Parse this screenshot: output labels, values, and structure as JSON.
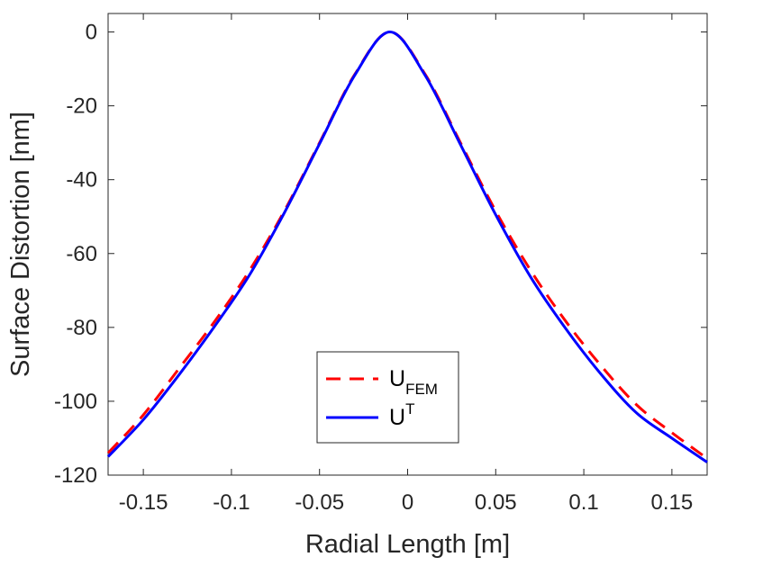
{
  "chart_data": {
    "type": "line",
    "xlabel": "Radial Length [m]",
    "ylabel": "Surface Distortion [nm]",
    "xlim": [
      -0.17,
      0.17
    ],
    "ylim": [
      -120,
      5
    ],
    "xticks": [
      -0.15,
      -0.1,
      -0.05,
      0,
      0.05,
      0.1,
      0.15
    ],
    "xtick_labels": [
      "-0.15",
      "-0.1",
      "-0.05",
      "0",
      "0.05",
      "0.1",
      "0.15"
    ],
    "yticks": [
      0,
      -20,
      -40,
      -60,
      -80,
      -100,
      -120
    ],
    "ytick_labels": [
      "0",
      "-20",
      "-40",
      "-60",
      "-80",
      "-100",
      "-120"
    ],
    "grid": false,
    "legend_position": "bottom-center",
    "series": [
      {
        "name": "U_FEM",
        "legend_main": "U",
        "legend_sub": "FEM",
        "color": "#ff0000",
        "style": "dashed",
        "x": [
          -0.17,
          -0.15,
          -0.13,
          -0.11,
          -0.09,
          -0.07,
          -0.05,
          -0.03,
          -0.01,
          0.01,
          0.03,
          0.05,
          0.07,
          0.09,
          0.11,
          0.13,
          0.15,
          0.17
        ],
        "y": [
          -114,
          -103.7,
          -91.3,
          -78.7,
          -64.8,
          -48.5,
          -30,
          -11.5,
          0,
          -11.5,
          -30,
          -48.5,
          -64.7,
          -78.5,
          -90.5,
          -101,
          -108.5,
          -115.5
        ]
      },
      {
        "name": "U^T",
        "legend_main": "U",
        "legend_sup": "T",
        "color": "#0000ff",
        "style": "solid",
        "x": [
          -0.17,
          -0.15,
          -0.13,
          -0.11,
          -0.09,
          -0.07,
          -0.05,
          -0.03,
          -0.01,
          0.01,
          0.03,
          0.05,
          0.07,
          0.09,
          0.11,
          0.13,
          0.15,
          0.17
        ],
        "y": [
          -115,
          -105,
          -93,
          -80,
          -66,
          -49,
          -30.3,
          -11.7,
          0,
          -11.8,
          -30.5,
          -49.5,
          -66.5,
          -80.5,
          -92.8,
          -103.2,
          -110,
          -116.5
        ]
      }
    ]
  }
}
